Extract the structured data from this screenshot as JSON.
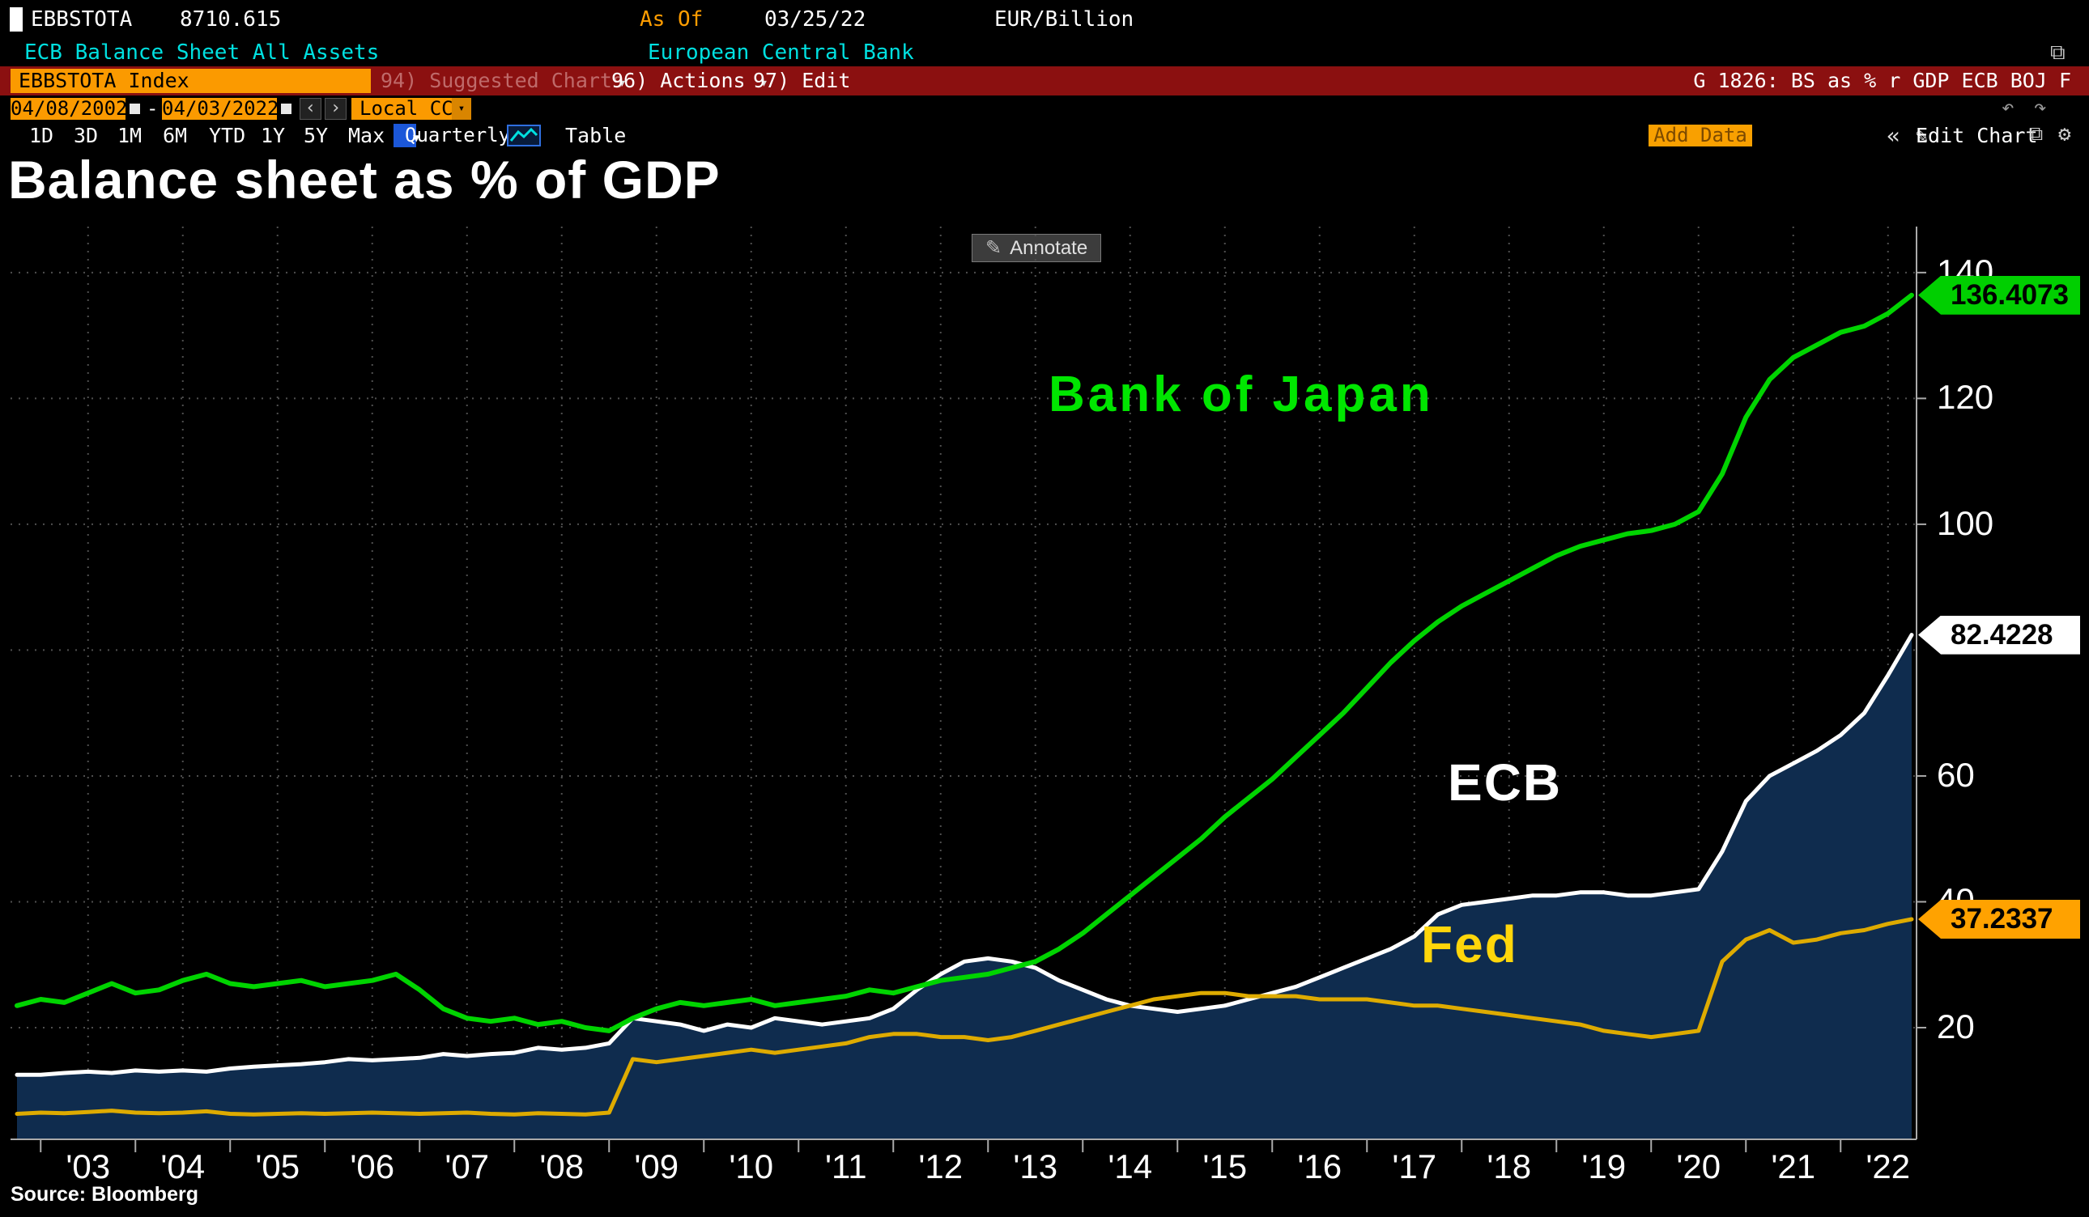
{
  "terminal": {
    "security": "EBBSTOTA",
    "last_value": "8710.615",
    "as_of_label": "As Of",
    "as_of_date": "03/25/22",
    "unit": "EUR/Billion",
    "description": "ECB Balance Sheet All Assets",
    "issuer": "European Central Bank",
    "command_field": "EBBSTOTA Index",
    "suggested_charts": "94) Suggested Charts",
    "actions": "96) Actions",
    "edit": "97) Edit",
    "chart_ref": "G 1826: BS as % r GDP ECB BOJ F",
    "date_start": "04/08/2002",
    "range_separator": "-",
    "date_end": "04/03/2022",
    "currency_mode": "Local CCY",
    "periods": [
      "1D",
      "3D",
      "1M",
      "6M",
      "YTD",
      "1Y",
      "5Y",
      "Max"
    ],
    "frequency": "Quarterly",
    "table_label": "Table",
    "add_data_label": "Add Data",
    "edit_chart_label": "Edit Chart",
    "annotate_label": "Annotate"
  },
  "chart": {
    "title": "Balance sheet as % of GDP",
    "source": "Source: Bloomberg"
  },
  "chart_data": {
    "type": "line",
    "title": "Balance sheet as % of GDP",
    "xlabel": "",
    "ylabel": "",
    "ylim": [
      0,
      147
    ],
    "grid": true,
    "background": "#000000",
    "x_tick_years": [
      2003,
      2004,
      2005,
      2006,
      2007,
      2008,
      2009,
      2010,
      2011,
      2012,
      2013,
      2014,
      2015,
      2016,
      2017,
      2018,
      2019,
      2020,
      2021,
      2022
    ],
    "x_tick_labels": [
      "'03",
      "'04",
      "'05",
      "'06",
      "'07",
      "'08",
      "'09",
      "'10",
      "'11",
      "'12",
      "'13",
      "'14",
      "'15",
      "'16",
      "'17",
      "'18",
      "'19",
      "'20",
      "'21",
      "'22"
    ],
    "y_gridlines": [
      20,
      40,
      60,
      80,
      100,
      120,
      140
    ],
    "y_axis_labels": [
      140,
      120,
      100,
      60,
      40,
      20
    ],
    "x": [
      2002.25,
      2002.5,
      2002.75,
      2003,
      2003.25,
      2003.5,
      2003.75,
      2004,
      2004.25,
      2004.5,
      2004.75,
      2005,
      2005.25,
      2005.5,
      2005.75,
      2006,
      2006.25,
      2006.5,
      2006.75,
      2007,
      2007.25,
      2007.5,
      2007.75,
      2008,
      2008.25,
      2008.5,
      2008.75,
      2009,
      2009.25,
      2009.5,
      2009.75,
      2010,
      2010.25,
      2010.5,
      2010.75,
      2011,
      2011.25,
      2011.5,
      2011.75,
      2012,
      2012.25,
      2012.5,
      2012.75,
      2013,
      2013.25,
      2013.5,
      2013.75,
      2014,
      2014.25,
      2014.5,
      2014.75,
      2015,
      2015.25,
      2015.5,
      2015.75,
      2016,
      2016.25,
      2016.5,
      2016.75,
      2017,
      2017.25,
      2017.5,
      2017.75,
      2018,
      2018.25,
      2018.5,
      2018.75,
      2019,
      2019.25,
      2019.5,
      2019.75,
      2020,
      2020.25,
      2020.5,
      2020.75,
      2021,
      2021.25,
      2021.5,
      2021.75,
      2022,
      2022.25
    ],
    "series": [
      {
        "name": "Bank of Japan",
        "color": "#00d400",
        "label_color": "#00e600",
        "badge_color": "#00cf00",
        "stroke_width": 6,
        "draw_order": 3,
        "last_value": 136.4073,
        "last_label": "136.4073",
        "values": [
          23.5,
          24.5,
          24,
          25.5,
          27,
          25.5,
          26,
          27.5,
          28.5,
          27,
          26.5,
          27,
          27.5,
          26.5,
          27,
          27.5,
          28.5,
          26,
          23,
          21.5,
          21,
          21.5,
          20.5,
          21,
          20,
          19.5,
          21.5,
          23,
          24,
          23.5,
          24,
          24.5,
          23.5,
          24,
          24.5,
          25,
          26,
          25.5,
          26.5,
          27.5,
          28,
          28.5,
          29.5,
          30.5,
          32.5,
          35,
          38,
          41,
          44,
          47,
          50,
          53.5,
          56.5,
          59.5,
          63,
          66.5,
          70,
          74,
          78,
          81.5,
          84.5,
          87,
          89,
          91,
          93,
          95,
          96.5,
          97.5,
          98.5,
          99,
          100,
          102,
          108,
          117,
          123,
          126.5,
          128.5,
          130.5,
          131.5,
          133.5,
          136.4073
        ]
      },
      {
        "name": "ECB",
        "color": "#ffffff",
        "label_color": "#ffffff",
        "badge_color": "#ffffff",
        "fill": "#0f2c4e",
        "stroke_width": 5,
        "draw_order": 1,
        "last_value": 82.4228,
        "last_label": "82.4228",
        "values": [
          12.5,
          12.5,
          12.8,
          13,
          12.8,
          13.2,
          13,
          13.2,
          13,
          13.5,
          13.8,
          14,
          14.2,
          14.5,
          15,
          14.8,
          15,
          15.2,
          15.8,
          15.5,
          15.8,
          16,
          16.8,
          16.5,
          16.8,
          17.5,
          21.5,
          21,
          20.5,
          19.5,
          20.5,
          20,
          21.5,
          21,
          20.5,
          21,
          21.5,
          23,
          26,
          28.5,
          30.5,
          31,
          30.5,
          29.5,
          27.5,
          26,
          24.5,
          23.5,
          23,
          22.5,
          23,
          23.5,
          24.5,
          25.5,
          26.5,
          28,
          29.5,
          31,
          32.5,
          34.5,
          38,
          39.5,
          40,
          40.5,
          41,
          41,
          41.5,
          41.5,
          41,
          41,
          41.5,
          42,
          48,
          56,
          60,
          62,
          64,
          66.5,
          70,
          76,
          82.4228
        ]
      },
      {
        "name": "Fed",
        "color": "#deab00",
        "label_color": "#ffd60a",
        "badge_color": "#ffa200",
        "stroke_width": 5,
        "draw_order": 2,
        "last_value": 37.2337,
        "last_label": "37.2337",
        "values": [
          6.3,
          6.5,
          6.4,
          6.6,
          6.8,
          6.5,
          6.4,
          6.5,
          6.7,
          6.3,
          6.2,
          6.3,
          6.4,
          6.3,
          6.4,
          6.5,
          6.4,
          6.3,
          6.4,
          6.5,
          6.3,
          6.2,
          6.4,
          6.3,
          6.2,
          6.5,
          15,
          14.5,
          15,
          15.5,
          16,
          16.5,
          16,
          16.5,
          17,
          17.5,
          18.5,
          19,
          19,
          18.5,
          18.5,
          18,
          18.5,
          19.5,
          20.5,
          21.5,
          22.5,
          23.5,
          24.5,
          25,
          25.5,
          25.5,
          25,
          25,
          25,
          24.5,
          24.5,
          24.5,
          24,
          23.5,
          23.5,
          23,
          22.5,
          22,
          21.5,
          21,
          20.5,
          19.5,
          19,
          18.5,
          19,
          19.5,
          30.5,
          34,
          35.5,
          33.5,
          34,
          35,
          35.5,
          36.5,
          37.2337
        ]
      }
    ]
  }
}
